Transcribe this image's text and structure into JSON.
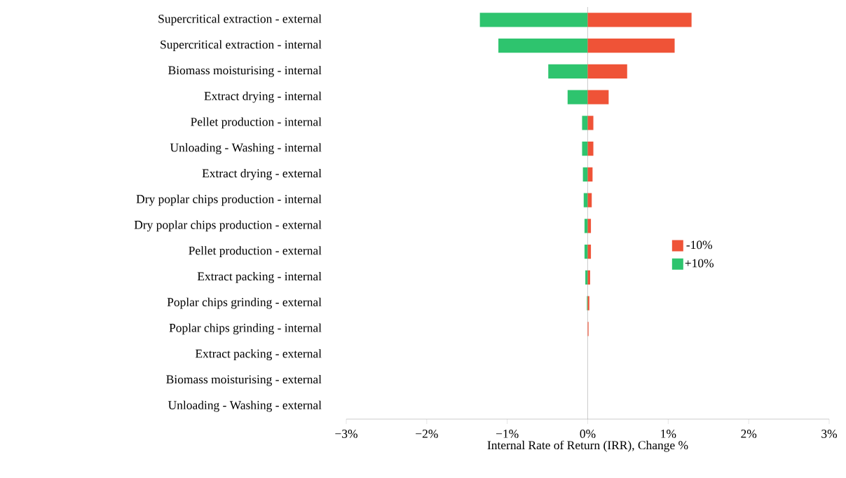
{
  "chart_data": {
    "type": "bar",
    "orientation": "horizontal",
    "xlabel": "Internal Rate of Return (IRR), Change %",
    "categories": [
      "Supercritical extraction - external",
      "Supercritical extraction - internal",
      "Biomass moisturising - internal",
      "Extract drying - internal",
      "Pellet production - internal",
      "Unloading - Washing - internal",
      "Extract drying - external",
      "Dry poplar chips production - internal",
      "Dry poplar chips production - external",
      "Pellet production - external",
      "Extract packing - internal",
      "Poplar chips grinding - external",
      "Poplar chips grinding - internal",
      "Extract packing - external",
      "Biomass moisturising - external",
      "Unloading - Washing - external"
    ],
    "series": [
      {
        "name": "-10%",
        "color": "#ef5337",
        "values": [
          1.29,
          1.08,
          0.49,
          0.26,
          0.07,
          0.07,
          0.06,
          0.05,
          0.04,
          0.04,
          0.03,
          0.02,
          0.01,
          0,
          0,
          0
        ]
      },
      {
        "name": "+10%",
        "color": "#2ec46e",
        "values": [
          -1.34,
          -1.11,
          -0.49,
          -0.25,
          -0.07,
          -0.07,
          -0.06,
          -0.05,
          -0.04,
          -0.04,
          -0.03,
          -0.01,
          0,
          0,
          0,
          0
        ]
      }
    ],
    "xlim": [
      -3,
      3
    ],
    "xticks": [
      {
        "value": -3,
        "label": "−3%"
      },
      {
        "value": -2,
        "label": "−2%"
      },
      {
        "value": -1,
        "label": "−1%"
      },
      {
        "value": 0,
        "label": "0%"
      },
      {
        "value": 1,
        "label": "1%"
      },
      {
        "value": 2,
        "label": "2%"
      },
      {
        "value": 3,
        "label": "3%"
      }
    ],
    "legend": "right",
    "stacked": true
  }
}
